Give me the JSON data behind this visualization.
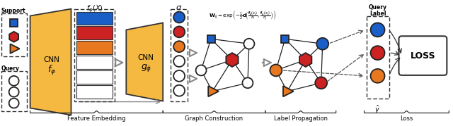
{
  "bg_color": "#ffffff",
  "orange_cnn": "#F5B942",
  "blue_fill": "#1a5fc8",
  "red_fill": "#cc2222",
  "orange_fill": "#E87820",
  "node_edge": "#222222",
  "text_color": "#000000",
  "section_labels": [
    "Feature Embedding",
    "Graph Construction",
    "Label Propagation",
    "Loss"
  ],
  "support_label": "Support",
  "query_label": "Query",
  "cnn1_label": "CNN\n$f_\\varphi$",
  "cnn2_label": "CNN\n$g_\\phi$",
  "loss_label": "LOSS",
  "feat_title": "$f_\\varphi(X)$",
  "sigma_title": "$\\sigma$"
}
